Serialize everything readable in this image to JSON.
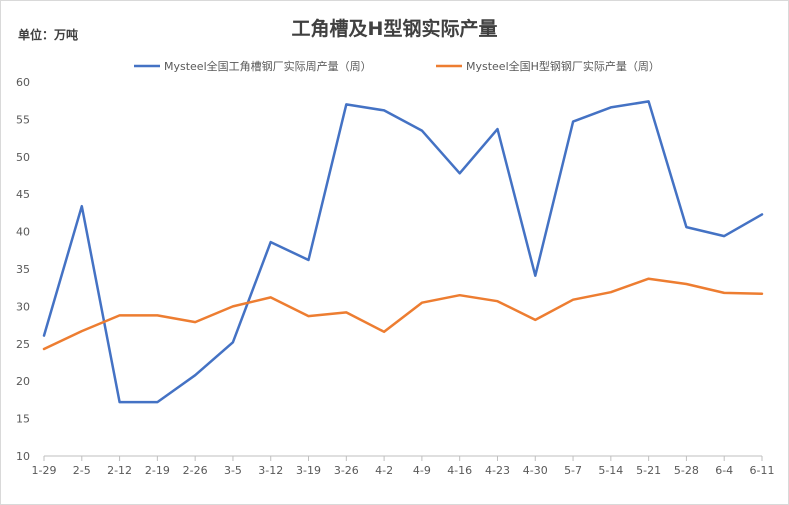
{
  "chart_data": {
    "type": "line",
    "title": "工角槽及H型钢实际产量",
    "unit_label": "单位：万吨",
    "categories": [
      "1-29",
      "2-5",
      "2-12",
      "2-19",
      "2-26",
      "3-5",
      "3-12",
      "3-19",
      "3-26",
      "4-2",
      "4-9",
      "4-16",
      "4-23",
      "4-30",
      "5-7",
      "5-14",
      "5-21",
      "5-28",
      "6-4",
      "6-11"
    ],
    "ylim": [
      10,
      60
    ],
    "yticks": [
      10,
      15,
      20,
      25,
      30,
      35,
      40,
      45,
      50,
      55,
      60
    ],
    "grid": false,
    "legend_position": "top",
    "series": [
      {
        "name": "Mysteel全国工角槽钢厂实际周产量（周）",
        "color": "#4472C4",
        "values": [
          26.1,
          43.4,
          17.2,
          17.2,
          20.8,
          25.2,
          38.6,
          36.2,
          57.0,
          56.2,
          53.5,
          47.8,
          53.7,
          34.1,
          54.7,
          56.6,
          57.4,
          40.6,
          39.4,
          42.3
        ]
      },
      {
        "name": "Mysteel全国H型钢钢厂实际产量（周）",
        "color": "#ED7D31",
        "values": [
          24.3,
          26.7,
          28.8,
          28.8,
          27.9,
          30.0,
          31.2,
          28.7,
          29.2,
          26.6,
          30.5,
          31.5,
          30.7,
          28.2,
          30.9,
          31.9,
          33.7,
          33.0,
          31.8,
          31.7
        ]
      }
    ]
  }
}
